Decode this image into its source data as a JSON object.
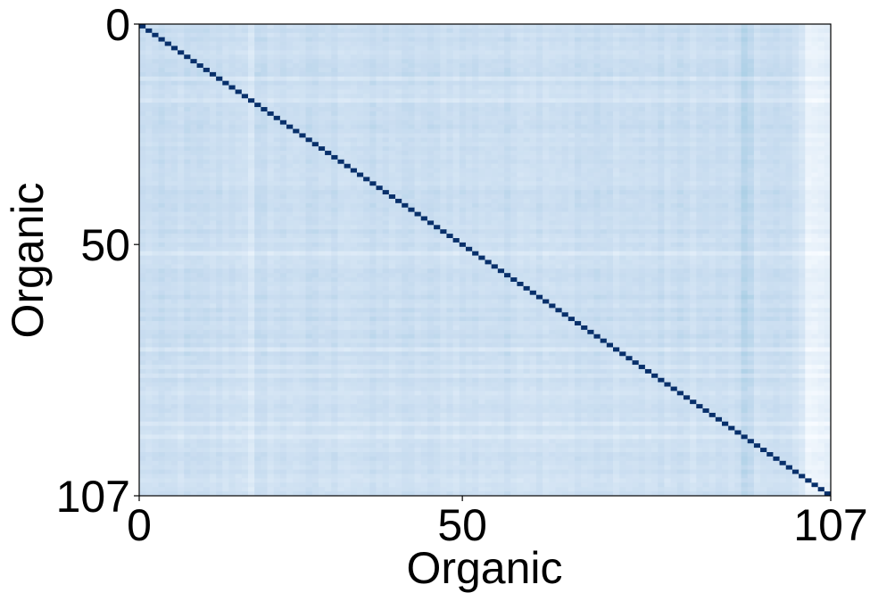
{
  "chart_data": {
    "type": "heatmap",
    "title": "",
    "xlabel": "Organic",
    "ylabel": "Organic",
    "rows": 108,
    "cols": 108,
    "x_ticks": [
      "0",
      "50",
      "107"
    ],
    "y_ticks": [
      "0",
      "50",
      "107"
    ],
    "x_tick_values": [
      0,
      50,
      107
    ],
    "y_tick_values": [
      0,
      50,
      107
    ],
    "xlim": [
      0,
      107
    ],
    "ylim": [
      107,
      0
    ],
    "colormap": "Blues",
    "value_range": [
      0,
      1
    ],
    "diagonal_value": 1.0,
    "off_diagonal_typical_range": [
      0.15,
      0.3
    ],
    "low_similarity_columns": [
      17,
      103,
      104,
      105,
      106,
      107
    ],
    "low_similarity_rows": [
      12,
      17,
      52,
      74,
      78,
      80,
      84,
      91,
      94
    ],
    "higher_similarity_columns": [
      94,
      95
    ],
    "colorbar": false,
    "grid": false,
    "legend": "none"
  }
}
